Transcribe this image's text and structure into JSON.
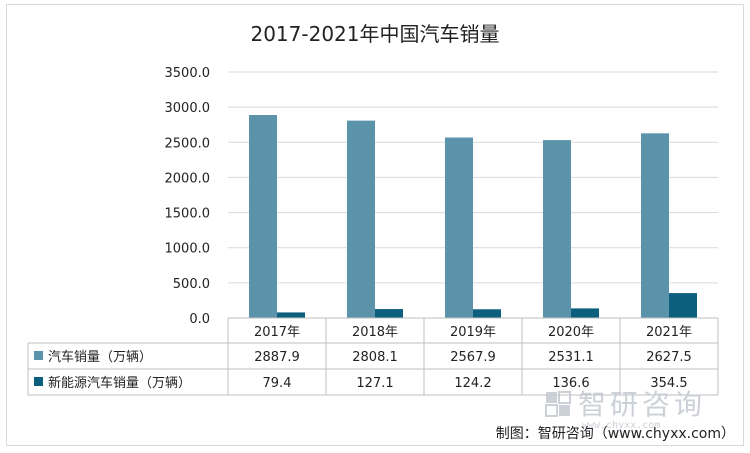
{
  "chart_data": {
    "type": "bar",
    "title": "2017-2021年中国汽车销量",
    "categories": [
      "2017年",
      "2018年",
      "2019年",
      "2020年",
      "2021年"
    ],
    "series": [
      {
        "name": "汽车销量（万辆）",
        "values": [
          2887.9,
          2808.1,
          2567.9,
          2531.1,
          2627.5
        ],
        "color": "#5b93aa"
      },
      {
        "name": "新能源汽车销量（万辆）",
        "values": [
          79.4,
          127.1,
          124.2,
          136.6,
          354.5
        ],
        "color": "#0d5f7e"
      }
    ],
    "series_labels": [
      [
        "2887.9",
        "2808.1",
        "2567.9",
        "2531.1",
        "2627.5"
      ],
      [
        "79.4",
        "127.1",
        "124.2",
        "136.6",
        "354.5"
      ]
    ],
    "y_ticks": [
      "0.0",
      "500.0",
      "1000.0",
      "1500.0",
      "2000.0",
      "2500.0",
      "3000.0",
      "3500.0"
    ],
    "ylim": [
      0,
      3500
    ],
    "grid": true,
    "legend": "data-table"
  },
  "footer": {
    "source": "制图：智研咨询（www.chyxx.com）"
  },
  "watermark": {
    "text": "智研咨询",
    "url": "www.chyxx.com"
  }
}
